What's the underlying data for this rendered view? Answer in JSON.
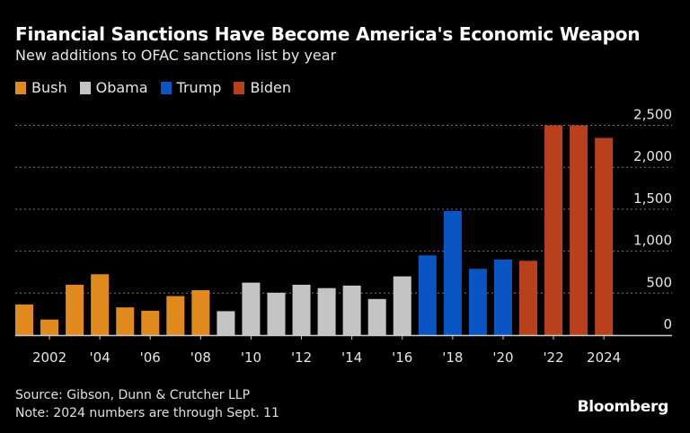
{
  "title": "Financial Sanctions Have Become America's Economic Weapon",
  "subtitle": "New additions to OFAC sanctions list by year",
  "source": "Source: Gibson, Dunn & Crutcher LLP",
  "note": "Note: 2024 numbers are through Sept. 11",
  "brand": "Bloomberg",
  "chart_data": {
    "type": "bar",
    "title": "Financial Sanctions Have Become America's Economic Weapon",
    "subtitle": "New additions to OFAC sanctions list by year",
    "categories": [
      2001,
      2002,
      2003,
      2004,
      2005,
      2006,
      2007,
      2008,
      2009,
      2010,
      2011,
      2012,
      2013,
      2014,
      2015,
      2016,
      2017,
      2018,
      2019,
      2020,
      2021,
      2022,
      2023,
      2024
    ],
    "values": [
      365,
      185,
      600,
      725,
      330,
      290,
      465,
      535,
      285,
      625,
      505,
      600,
      560,
      590,
      430,
      700,
      950,
      1480,
      790,
      900,
      885,
      2500,
      2500,
      2350
    ],
    "administration": [
      "Bush",
      "Bush",
      "Bush",
      "Bush",
      "Bush",
      "Bush",
      "Bush",
      "Bush",
      "Obama",
      "Obama",
      "Obama",
      "Obama",
      "Obama",
      "Obama",
      "Obama",
      "Obama",
      "Trump",
      "Trump",
      "Trump",
      "Trump",
      "Biden",
      "Biden",
      "Biden",
      "Biden"
    ],
    "legend": [
      {
        "name": "Bush",
        "color": "#e08a1e"
      },
      {
        "name": "Obama",
        "color": "#c4c4c4"
      },
      {
        "name": "Trump",
        "color": "#0a55c4"
      },
      {
        "name": "Biden",
        "color": "#b8401c"
      }
    ],
    "legend_position": "top-left",
    "x_tick_labels": [
      {
        "year": 2002,
        "label": "2002"
      },
      {
        "year": 2004,
        "label": "'04"
      },
      {
        "year": 2006,
        "label": "'06"
      },
      {
        "year": 2008,
        "label": "'08"
      },
      {
        "year": 2010,
        "label": "'10"
      },
      {
        "year": 2012,
        "label": "'12"
      },
      {
        "year": 2014,
        "label": "'14"
      },
      {
        "year": 2016,
        "label": "'16"
      },
      {
        "year": 2018,
        "label": "'18"
      },
      {
        "year": 2020,
        "label": "'20"
      },
      {
        "year": 2022,
        "label": "'22"
      },
      {
        "year": 2024,
        "label": "2024"
      }
    ],
    "y_ticks": [
      0,
      500,
      1000,
      1500,
      2000,
      2500
    ],
    "y_tick_labels": [
      "0",
      "500",
      "1,000",
      "1,500",
      "2,000",
      "2,500"
    ],
    "ylim": [
      0,
      2500
    ],
    "y_axis_side": "right",
    "grid": true
  }
}
